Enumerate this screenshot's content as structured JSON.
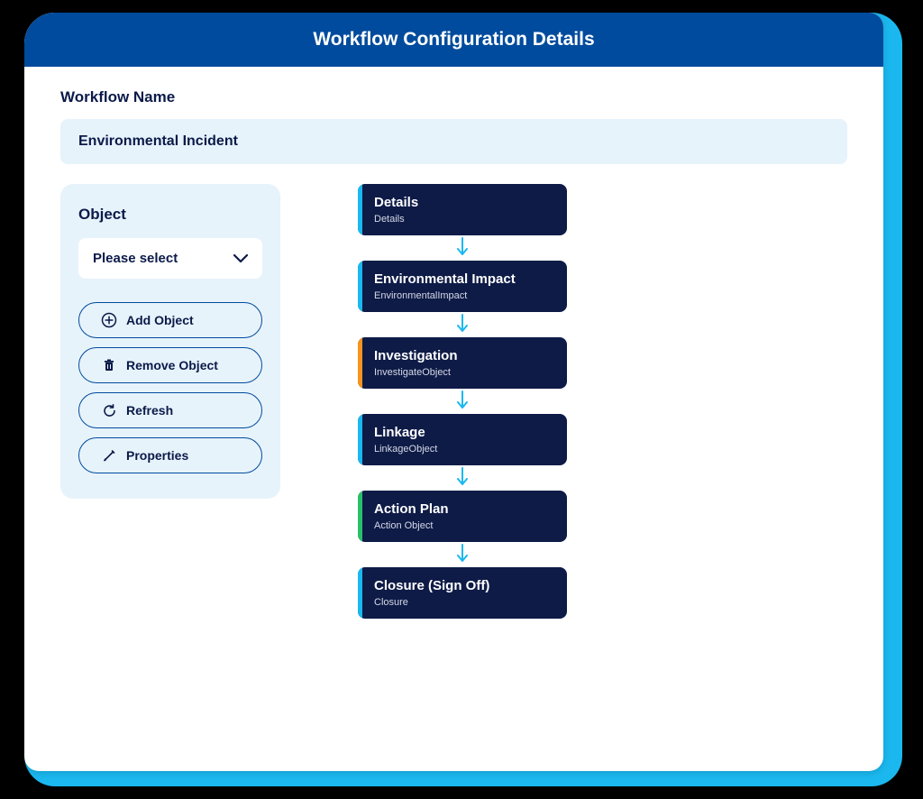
{
  "colors": {
    "outer": "#1ab8ef",
    "titlebar": "#004b9d",
    "panel": "#e7f3fb",
    "node_bg": "#0e1b47",
    "text_dark": "#0b1a49",
    "arrow": "#1ab8ef"
  },
  "title": "Workflow Configuration Details",
  "workflow_label": "Workflow Name",
  "workflow_name": "Environmental Incident",
  "sidebar": {
    "title": "Object",
    "dropdown_placeholder": "Please select",
    "actions": [
      {
        "icon": "plus",
        "label": "Add Object"
      },
      {
        "icon": "trash",
        "label": "Remove Object"
      },
      {
        "icon": "refresh",
        "label": "Refresh"
      },
      {
        "icon": "pencil",
        "label": "Properties"
      }
    ]
  },
  "flow": {
    "nodes": [
      {
        "title": "Details",
        "subtitle": "Details",
        "accent": "#1ab8ef"
      },
      {
        "title": "Environmental Impact",
        "subtitle": "EnvironmentalImpact",
        "accent": "#1ab8ef"
      },
      {
        "title": "Investigation",
        "subtitle": "InvestigateObject",
        "accent": "#f7941d"
      },
      {
        "title": "Linkage",
        "subtitle": "LinkageObject",
        "accent": "#1ab8ef"
      },
      {
        "title": "Action Plan",
        "subtitle": "Action Object",
        "accent": "#2bbf6a"
      },
      {
        "title": "Closure (Sign Off)",
        "subtitle": "Closure",
        "accent": "#1ab8ef"
      }
    ]
  }
}
